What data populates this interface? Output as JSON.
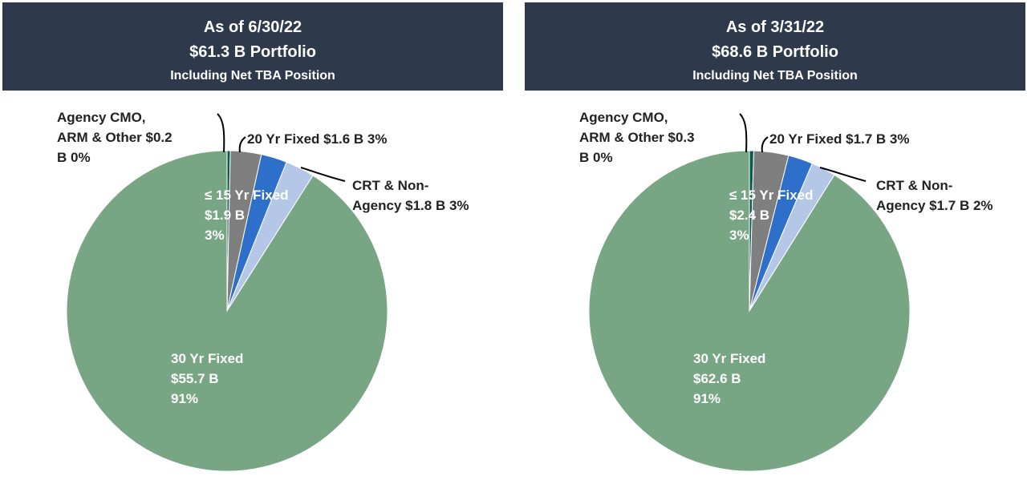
{
  "chart_data": [
    {
      "type": "pie",
      "header": {
        "line1": "As of 6/30/22",
        "line2": "$61.3 B Portfolio",
        "line3": "Including Net TBA Position"
      },
      "slices": [
        {
          "label_lines": [
            "Agency CMO,",
            "ARM & Other $0.2",
            "B 0%"
          ],
          "value": 0.2,
          "color": "#0a5c4c"
        },
        {
          "label_lines": [
            "≤ 15 Yr Fixed",
            "$1.9 B",
            "3%"
          ],
          "value": 1.9,
          "color": "#7f7f7f"
        },
        {
          "label_lines": [
            "20 Yr Fixed $1.6 B 3%"
          ],
          "value": 1.6,
          "color": "#2e6fc9"
        },
        {
          "label_lines": [
            "CRT & Non-",
            "Agency $1.8 B 3%"
          ],
          "value": 1.8,
          "color": "#b4c7e7"
        },
        {
          "label_lines": [
            "30 Yr Fixed",
            "$55.7 B",
            "91%"
          ],
          "value": 55.7,
          "color": "#78a584"
        }
      ]
    },
    {
      "type": "pie",
      "header": {
        "line1": "As of 3/31/22",
        "line2": "$68.6 B Portfolio",
        "line3": "Including Net TBA Position"
      },
      "slices": [
        {
          "label_lines": [
            "Agency CMO,",
            "ARM & Other $0.3",
            "B 0%"
          ],
          "value": 0.3,
          "color": "#0a5c4c"
        },
        {
          "label_lines": [
            "≤ 15 Yr Fixed",
            "$2.4 B",
            "3%"
          ],
          "value": 2.4,
          "color": "#7f7f7f"
        },
        {
          "label_lines": [
            "20 Yr Fixed $1.7 B 3%"
          ],
          "value": 1.7,
          "color": "#2e6fc9"
        },
        {
          "label_lines": [
            "CRT & Non-",
            "Agency $1.7 B 2%"
          ],
          "value": 1.7,
          "color": "#b4c7e7"
        },
        {
          "label_lines": [
            "30 Yr Fixed",
            "$62.6 B",
            "91%"
          ],
          "value": 62.6,
          "color": "#78a584"
        }
      ]
    }
  ]
}
